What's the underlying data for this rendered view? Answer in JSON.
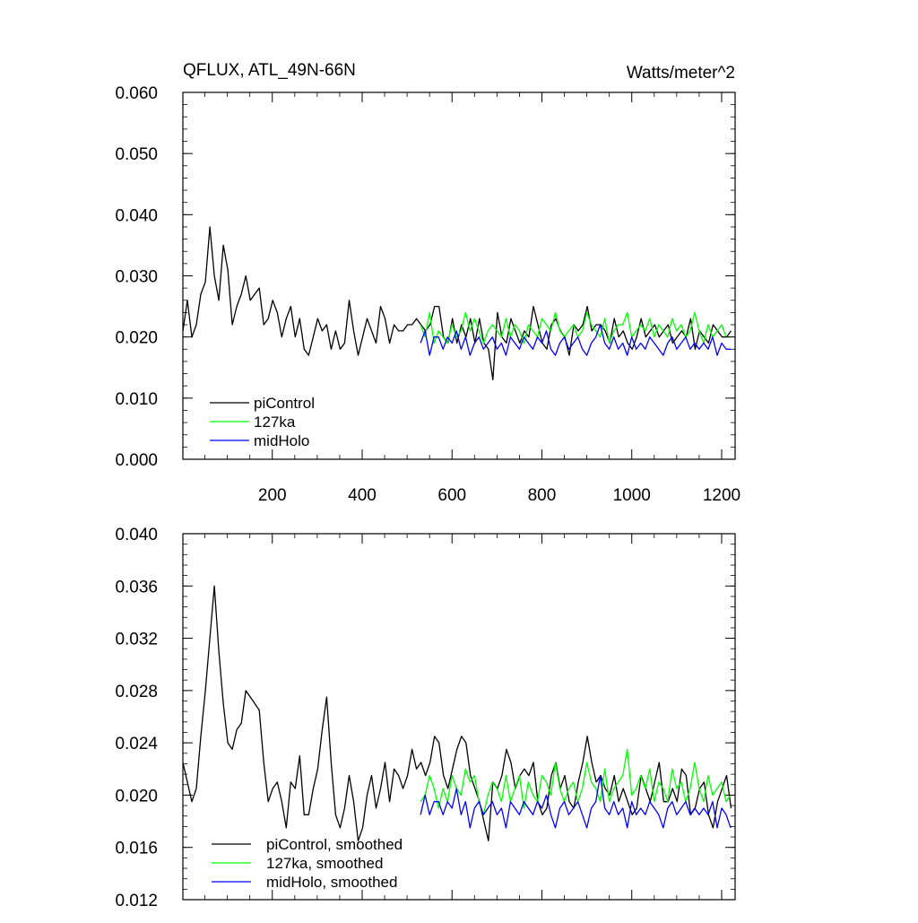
{
  "chart_data": [
    {
      "type": "line",
      "title": "QFLUX, ATL_49N-66N",
      "units": "Watts/meter^2",
      "xlabel": "",
      "ylabel": "",
      "xlim": [
        1,
        1230
      ],
      "ylim": [
        0.0,
        0.06
      ],
      "x_ticks": [
        200,
        400,
        600,
        800,
        1000,
        1200
      ],
      "x_tick_labels": [
        "200",
        "400",
        "600",
        "800",
        "1000",
        "1200"
      ],
      "y_ticks": [
        0.0,
        0.01,
        0.02,
        0.03,
        0.04,
        0.05,
        0.06
      ],
      "y_tick_labels": [
        "0.000",
        "0.010",
        "0.020",
        "0.030",
        "0.040",
        "0.050",
        "0.060"
      ],
      "grid": false,
      "legend_position": "bottom-left",
      "series": [
        {
          "name": "piControl",
          "color": "#000000",
          "x_range": [
            1,
            1220
          ],
          "x_step": 10,
          "values": [
            0.021,
            0.026,
            0.02,
            0.022,
            0.027,
            0.029,
            0.038,
            0.03,
            0.026,
            0.035,
            0.031,
            0.022,
            0.025,
            0.027,
            0.03,
            0.026,
            0.027,
            0.028,
            0.022,
            0.023,
            0.026,
            0.024,
            0.02,
            0.023,
            0.025,
            0.02,
            0.023,
            0.018,
            0.017,
            0.02,
            0.023,
            0.021,
            0.022,
            0.018,
            0.021,
            0.018,
            0.019,
            0.026,
            0.021,
            0.017,
            0.02,
            0.023,
            0.021,
            0.019,
            0.025,
            0.023,
            0.019,
            0.022,
            0.021,
            0.021,
            0.022,
            0.022,
            0.023,
            0.022,
            0.021,
            0.022,
            0.025,
            0.025,
            0.02,
            0.019,
            0.023,
            0.019,
            0.022,
            0.02,
            0.023,
            0.019,
            0.023,
            0.019,
            0.018,
            0.013,
            0.024,
            0.02,
            0.019,
            0.023,
            0.021,
            0.019,
            0.021,
            0.02,
            0.025,
            0.022,
            0.019,
            0.018,
            0.022,
            0.023,
            0.021,
            0.02,
            0.017,
            0.022,
            0.021,
            0.022,
            0.025,
            0.021,
            0.022,
            0.022,
            0.021,
            0.019,
            0.023,
            0.02,
            0.021,
            0.019,
            0.018,
            0.02,
            0.023,
            0.02,
            0.021,
            0.022,
            0.02,
            0.021,
            0.022,
            0.019,
            0.02,
            0.021,
            0.02,
            0.023,
            0.018,
            0.021,
            0.02,
            0.019,
            0.022,
            0.021,
            0.02,
            0.02,
            0.021
          ]
        },
        {
          "name": "127ka",
          "color": "#00ff00",
          "x_range": [
            530,
            1220
          ],
          "x_step": 10,
          "values": [
            0.022,
            0.02,
            0.024,
            0.019,
            0.021,
            0.02,
            0.019,
            0.022,
            0.02,
            0.021,
            0.024,
            0.021,
            0.023,
            0.021,
            0.019,
            0.021,
            0.022,
            0.021,
            0.02,
            0.023,
            0.02,
            0.022,
            0.021,
            0.019,
            0.022,
            0.021,
            0.02,
            0.023,
            0.022,
            0.021,
            0.024,
            0.021,
            0.02,
            0.021,
            0.022,
            0.02,
            0.021,
            0.024,
            0.022,
            0.021,
            0.02,
            0.023,
            0.019,
            0.021,
            0.022,
            0.022,
            0.024,
            0.02,
            0.021,
            0.022,
            0.021,
            0.023,
            0.02,
            0.022,
            0.021,
            0.02,
            0.023,
            0.021,
            0.022,
            0.02,
            0.021,
            0.024,
            0.021,
            0.019,
            0.022,
            0.02,
            0.021,
            0.022,
            0.02,
            0.02
          ]
        },
        {
          "name": "midHolo",
          "color": "#0000ff",
          "x_range": [
            530,
            1220
          ],
          "x_step": 10,
          "values": [
            0.019,
            0.021,
            0.017,
            0.02,
            0.02,
            0.018,
            0.02,
            0.019,
            0.021,
            0.018,
            0.02,
            0.017,
            0.019,
            0.02,
            0.018,
            0.019,
            0.02,
            0.018,
            0.019,
            0.017,
            0.02,
            0.019,
            0.018,
            0.02,
            0.019,
            0.018,
            0.02,
            0.019,
            0.021,
            0.018,
            0.017,
            0.019,
            0.02,
            0.018,
            0.019,
            0.02,
            0.018,
            0.017,
            0.019,
            0.02,
            0.022,
            0.019,
            0.018,
            0.02,
            0.018,
            0.019,
            0.017,
            0.02,
            0.018,
            0.019,
            0.018,
            0.02,
            0.019,
            0.018,
            0.017,
            0.019,
            0.02,
            0.018,
            0.019,
            0.02,
            0.018,
            0.019,
            0.018,
            0.019,
            0.018,
            0.02,
            0.017,
            0.019,
            0.018,
            0.018
          ]
        }
      ],
      "legend": [
        "piControl",
        "127ka",
        "midHolo"
      ]
    },
    {
      "type": "line",
      "title": "",
      "xlabel": "",
      "ylabel": "",
      "xlim": [
        1,
        1230
      ],
      "ylim": [
        0.012,
        0.04
      ],
      "y_ticks": [
        0.012,
        0.016,
        0.02,
        0.024,
        0.028,
        0.032,
        0.036,
        0.04
      ],
      "y_tick_labels": [
        "0.012",
        "0.016",
        "0.020",
        "0.024",
        "0.028",
        "0.032",
        "0.036",
        "0.040"
      ],
      "grid": false,
      "legend_position": "bottom-left",
      "series": [
        {
          "name": "piControl, smoothed",
          "color": "#000000",
          "x_range": [
            1,
            1220
          ],
          "x_step": 10,
          "values": [
            0.0225,
            0.021,
            0.0195,
            0.0205,
            0.0245,
            0.028,
            0.032,
            0.036,
            0.031,
            0.027,
            0.024,
            0.0235,
            0.025,
            0.0255,
            0.028,
            0.0275,
            0.027,
            0.0265,
            0.0225,
            0.0195,
            0.0205,
            0.021,
            0.0195,
            0.0175,
            0.021,
            0.0205,
            0.023,
            0.0185,
            0.0185,
            0.0205,
            0.022,
            0.025,
            0.0275,
            0.0225,
            0.0185,
            0.0175,
            0.019,
            0.0215,
            0.0195,
            0.0165,
            0.0175,
            0.02,
            0.0215,
            0.019,
            0.0205,
            0.0225,
            0.0195,
            0.022,
            0.0215,
            0.0205,
            0.0215,
            0.0235,
            0.022,
            0.0225,
            0.0215,
            0.0225,
            0.0245,
            0.024,
            0.0215,
            0.0205,
            0.022,
            0.0235,
            0.0245,
            0.024,
            0.0215,
            0.0205,
            0.0195,
            0.018,
            0.0165,
            0.021,
            0.0205,
            0.0215,
            0.0235,
            0.0225,
            0.0205,
            0.0215,
            0.022,
            0.0215,
            0.0225,
            0.0195,
            0.0185,
            0.019,
            0.0215,
            0.0225,
            0.0205,
            0.0215,
            0.0195,
            0.019,
            0.021,
            0.0225,
            0.0245,
            0.0225,
            0.021,
            0.0215,
            0.0205,
            0.02,
            0.0215,
            0.0195,
            0.0205,
            0.0195,
            0.0185,
            0.019,
            0.0215,
            0.0205,
            0.0195,
            0.021,
            0.0225,
            0.0195,
            0.0195,
            0.0205,
            0.0195,
            0.022,
            0.0215,
            0.0185,
            0.019,
            0.0205,
            0.021,
            0.0185,
            0.0175,
            0.0195,
            0.0205,
            0.0215,
            0.019
          ]
        },
        {
          "name": "127ka, smoothed",
          "color": "#00ff00",
          "x_range": [
            530,
            1220
          ],
          "x_step": 10,
          "values": [
            0.0195,
            0.02,
            0.0215,
            0.0205,
            0.019,
            0.0205,
            0.0195,
            0.0215,
            0.0205,
            0.02,
            0.022,
            0.021,
            0.0215,
            0.0195,
            0.0185,
            0.02,
            0.021,
            0.0205,
            0.0195,
            0.0215,
            0.0195,
            0.0205,
            0.0215,
            0.019,
            0.021,
            0.02,
            0.0195,
            0.0215,
            0.021,
            0.02,
            0.0225,
            0.0205,
            0.0195,
            0.0205,
            0.021,
            0.0195,
            0.0205,
            0.0225,
            0.021,
            0.0205,
            0.0195,
            0.022,
            0.0195,
            0.0205,
            0.021,
            0.0215,
            0.0235,
            0.02,
            0.0205,
            0.0215,
            0.0205,
            0.022,
            0.0195,
            0.021,
            0.0205,
            0.0195,
            0.022,
            0.0205,
            0.021,
            0.0195,
            0.0205,
            0.0225,
            0.0205,
            0.0195,
            0.0215,
            0.02,
            0.0205,
            0.021,
            0.0195,
            0.02
          ]
        },
        {
          "name": "midHolo, smoothed",
          "color": "#0000ff",
          "x_range": [
            530,
            1220
          ],
          "x_step": 10,
          "values": [
            0.0185,
            0.02,
            0.0185,
            0.0195,
            0.0195,
            0.0185,
            0.0195,
            0.019,
            0.0205,
            0.0185,
            0.0195,
            0.0175,
            0.019,
            0.0195,
            0.0185,
            0.019,
            0.0195,
            0.0185,
            0.019,
            0.0175,
            0.0195,
            0.019,
            0.0185,
            0.0195,
            0.019,
            0.0185,
            0.0195,
            0.019,
            0.02,
            0.0185,
            0.0175,
            0.019,
            0.0195,
            0.0185,
            0.019,
            0.0195,
            0.0185,
            0.0175,
            0.019,
            0.0195,
            0.0215,
            0.019,
            0.0185,
            0.0195,
            0.0185,
            0.019,
            0.0175,
            0.0195,
            0.0185,
            0.019,
            0.0185,
            0.0195,
            0.019,
            0.0185,
            0.0175,
            0.019,
            0.0195,
            0.0185,
            0.019,
            0.0195,
            0.0185,
            0.019,
            0.0185,
            0.019,
            0.0185,
            0.0195,
            0.0175,
            0.019,
            0.0185,
            0.0175
          ]
        }
      ],
      "legend": [
        "piControl, smoothed",
        "127ka, smoothed",
        "midHolo, smoothed"
      ]
    }
  ]
}
